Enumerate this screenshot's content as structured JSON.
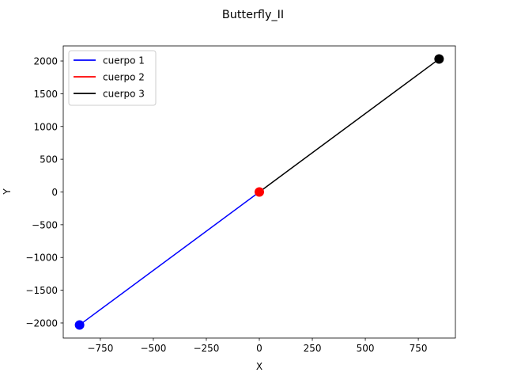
{
  "chart_data": {
    "type": "line",
    "title": "Butterfly_II",
    "xlabel": "X",
    "ylabel": "Y",
    "xlim": [
      -925,
      925
    ],
    "ylim": [
      -2230,
      2230
    ],
    "xticks": [
      -750,
      -500,
      -250,
      0,
      250,
      500,
      750
    ],
    "yticks": [
      -2000,
      -1500,
      -1000,
      -500,
      0,
      500,
      1000,
      1500,
      2000
    ],
    "legend_position": "top-left",
    "grid": false,
    "series": [
      {
        "name": "cuerpo 1",
        "color": "#0000ff",
        "x": [
          0,
          -848
        ],
        "y": [
          0,
          -2030
        ],
        "marker_at_end": true
      },
      {
        "name": "cuerpo 2",
        "color": "#ff0000",
        "x": [
          0,
          0
        ],
        "y": [
          0,
          0
        ],
        "marker_at_end": true
      },
      {
        "name": "cuerpo 3",
        "color": "#000000",
        "x": [
          0,
          848
        ],
        "y": [
          0,
          2030
        ],
        "marker_at_end": true
      }
    ]
  }
}
